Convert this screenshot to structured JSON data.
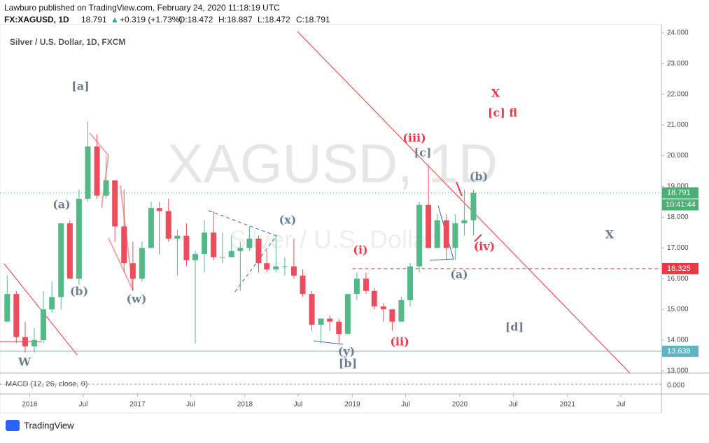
{
  "chart_data": {
    "type": "candlestick",
    "header": {
      "publisher": "Lawburo published on TradingView.com, February 24, 2020 11:18:19 UTC",
      "symbol": "FX:XAGUSD, 1D",
      "price": "18.791",
      "change": "+0.319 (+1.73%)",
      "open": "O:18.472",
      "high": "H:18.887",
      "low": "L:18.472",
      "close": "C:18.791"
    },
    "title": "Silver / U.S. Dollar, 1D, FXCM",
    "watermark": "XAGUSD, 1D",
    "watermark_sub": "Silver / U.S. Dollar",
    "x": [
      "2015-10",
      "2015-11",
      "2015-12",
      "2016-01",
      "2016-02",
      "2016-03",
      "2016-04",
      "2016-05",
      "2016-06",
      "2016-07",
      "2016-08",
      "2016-09",
      "2016-10",
      "2016-11",
      "2016-12",
      "2017-01",
      "2017-02",
      "2017-03",
      "2017-04",
      "2017-05",
      "2017-06",
      "2017-07",
      "2017-08",
      "2017-09",
      "2017-10",
      "2017-11",
      "2017-12",
      "2018-01",
      "2018-02",
      "2018-03",
      "2018-04",
      "2018-05",
      "2018-06",
      "2018-07",
      "2018-08",
      "2018-09",
      "2018-10",
      "2018-11",
      "2018-12",
      "2019-01",
      "2019-02",
      "2019-03",
      "2019-04",
      "2019-05",
      "2019-06",
      "2019-07",
      "2019-08",
      "2019-09",
      "2019-10",
      "2019-11",
      "2019-12",
      "2020-01",
      "2020-02"
    ],
    "open": [
      14.6,
      15.5,
      14.1,
      13.8,
      14.0,
      15.0,
      15.4,
      17.8,
      16.0,
      18.6,
      20.3,
      18.7,
      19.2,
      17.7,
      16.5,
      16.0,
      17.0,
      18.3,
      18.2,
      17.3,
      17.4,
      16.6,
      16.8,
      17.5,
      16.7,
      16.7,
      16.9,
      17.0,
      17.3,
      16.5,
      16.3,
      16.4,
      16.4,
      16.1,
      15.5,
      14.5,
      14.7,
      14.6,
      14.2,
      15.5,
      16.0,
      15.6,
      15.1,
      15.0,
      14.6,
      15.3,
      16.4,
      18.4,
      17.0,
      17.9,
      17.0,
      17.8,
      17.9
    ],
    "high": [
      16.1,
      15.6,
      14.6,
      14.4,
      15.6,
      15.9,
      17.8,
      17.9,
      18.9,
      21.1,
      20.7,
      20.0,
      19.2,
      18.9,
      17.2,
      17.2,
      18.5,
      18.5,
      18.6,
      17.6,
      17.8,
      16.9,
      17.9,
      18.2,
      17.5,
      17.4,
      17.2,
      17.7,
      17.4,
      16.9,
      17.4,
      16.7,
      17.3,
      16.3,
      15.6,
      14.6,
      14.8,
      14.7,
      15.5,
      16.2,
      16.2,
      15.7,
      15.2,
      15.0,
      15.4,
      16.5,
      18.5,
      19.7,
      18.1,
      18.1,
      18.1,
      18.9,
      18.9
    ],
    "low": [
      14.6,
      13.9,
      13.6,
      13.6,
      13.9,
      14.9,
      15.0,
      16.0,
      15.8,
      18.5,
      18.6,
      18.6,
      17.2,
      16.2,
      15.6,
      15.9,
      17.0,
      16.8,
      17.2,
      16.1,
      16.4,
      13.9,
      16.2,
      16.6,
      16.5,
      16.7,
      15.6,
      16.9,
      16.2,
      16.2,
      16.2,
      16.1,
      16.0,
      15.4,
      14.3,
      13.9,
      14.3,
      13.9,
      14.2,
      15.3,
      15.5,
      15.0,
      14.6,
      14.3,
      14.6,
      15.1,
      16.2,
      17.0,
      17.0,
      16.6,
      16.6,
      17.4,
      17.4
    ],
    "close": [
      15.5,
      14.1,
      13.8,
      14.0,
      15.0,
      15.4,
      17.8,
      16.0,
      18.6,
      20.3,
      18.7,
      19.2,
      17.7,
      16.5,
      16.0,
      17.0,
      18.3,
      18.2,
      17.3,
      17.4,
      16.6,
      16.8,
      17.5,
      16.7,
      16.7,
      16.9,
      17.0,
      17.3,
      16.5,
      16.3,
      16.4,
      16.4,
      16.1,
      15.5,
      14.5,
      14.7,
      14.6,
      14.2,
      15.5,
      16.0,
      15.6,
      15.1,
      15.0,
      14.6,
      15.3,
      16.4,
      18.4,
      17.0,
      17.9,
      17.0,
      17.8,
      17.9,
      18.791
    ],
    "up_color": "#53b987",
    "down_color": "#eb4d5c",
    "xlim": [
      "2015-09-22",
      "2021-11-16"
    ],
    "xticks": [
      {
        "value": "2016-01-01",
        "label": "2016"
      },
      {
        "value": "2016-07-01",
        "label": "Jul"
      },
      {
        "value": "2017-01-01",
        "label": "2017"
      },
      {
        "value": "2017-07-01",
        "label": "Jul"
      },
      {
        "value": "2018-01-01",
        "label": "2018"
      },
      {
        "value": "2018-07-01",
        "label": "Jul"
      },
      {
        "value": "2019-01-01",
        "label": "2019"
      },
      {
        "value": "2019-07-01",
        "label": "Jul"
      },
      {
        "value": "2020-01-01",
        "label": "2020"
      },
      {
        "value": "2020-07-01",
        "label": "Jul"
      },
      {
        "value": "2021-01-01",
        "label": "2021"
      },
      {
        "value": "2021-07-01",
        "label": "Jul"
      }
    ],
    "ylim": [
      12.93,
      24.27
    ],
    "yticks": [
      {
        "value": 13,
        "label": "13.000"
      },
      {
        "value": 14,
        "label": "14.000"
      },
      {
        "value": 15,
        "label": "15.000"
      },
      {
        "value": 16,
        "label": "16.000"
      },
      {
        "value": 17,
        "label": "17.000"
      },
      {
        "value": 18,
        "label": "18.000"
      },
      {
        "value": 19,
        "label": "19.000"
      },
      {
        "value": 20,
        "label": "20.000"
      },
      {
        "value": 21,
        "label": "21.000"
      },
      {
        "value": 22,
        "label": "22.000"
      },
      {
        "value": 23,
        "label": "23.000"
      },
      {
        "value": 24,
        "label": "24.000"
      }
    ],
    "last_price": {
      "value": 18.791,
      "label": "18.791",
      "countdown": "10:41:44",
      "color": "#4caf73"
    },
    "hlines": [
      {
        "value": 16.325,
        "label": "16.325",
        "color": "#f23645",
        "dashed": true
      },
      {
        "value": 13.638,
        "label": "13.638",
        "color": "#5fb4c4",
        "dashed": false
      }
    ],
    "annotations": [
      {
        "text": "[a]",
        "color": "#6d7f8f"
      },
      {
        "text": "(a)",
        "color": "#6d7f8f"
      },
      {
        "text": "(b)",
        "color": "#6d7f8f"
      },
      {
        "text": "(w)",
        "color": "#6d7f8f"
      },
      {
        "text": "(x)",
        "color": "#6d7f8f"
      },
      {
        "text": "(y)",
        "color": "#6d7f8f"
      },
      {
        "text": "[b]",
        "color": "#6d7f8f"
      },
      {
        "text": "(i)",
        "color": "#f23645"
      },
      {
        "text": "(ii)",
        "color": "#f23645"
      },
      {
        "text": "(iii)",
        "color": "#f23645"
      },
      {
        "text": "[c]",
        "color": "#6d7f8f"
      },
      {
        "text": "(b)",
        "color": "#6d7f8f"
      },
      {
        "text": "(iv)",
        "color": "#f23645"
      },
      {
        "text": "(a)",
        "color": "#6d7f8f"
      },
      {
        "text": "X",
        "color": "#f23645"
      },
      {
        "text": "[c] fl",
        "color": "#f23645"
      },
      {
        "text": "[d]",
        "color": "#6d7f8f"
      },
      {
        "text": "X",
        "color": "#6d7f8f"
      },
      {
        "text": "W",
        "color": "#6d7f8f"
      }
    ],
    "macd": {
      "label": "MACD (12, 26, close, 9)",
      "yticks": [
        {
          "value": 0,
          "label": "0.000"
        }
      ]
    },
    "footer": "TradingView"
  }
}
